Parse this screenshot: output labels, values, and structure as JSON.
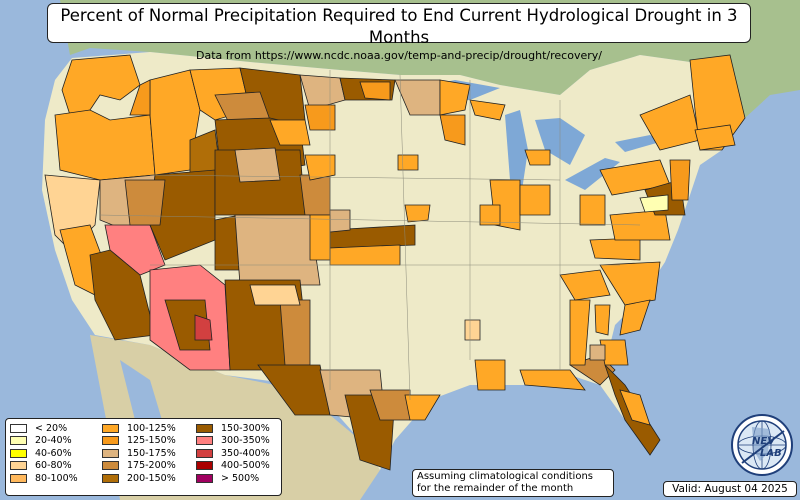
{
  "title": "Percent of Normal Precipitation Required to End Current Hydrological Drought in 3 Months",
  "subtitle": "Data from https://www.ncdc.noaa.gov/temp-and-precip/drought/recovery/",
  "legend": {
    "items": [
      {
        "label": "< 20%",
        "color": "#ffffff"
      },
      {
        "label": "20-40%",
        "color": "#ffffb2"
      },
      {
        "label": "40-60%",
        "color": "#ffff00"
      },
      {
        "label": "60-80%",
        "color": "#ffd494"
      },
      {
        "label": "80-100%",
        "color": "#ffb85c"
      },
      {
        "label": "100-125%",
        "color": "#ffa826"
      },
      {
        "label": "125-150%",
        "color": "#f79a1c"
      },
      {
        "label": "150-175%",
        "color": "#deb480"
      },
      {
        "label": "175-200%",
        "color": "#cd8b3c"
      },
      {
        "label": "200-150%",
        "color": "#b06e08"
      },
      {
        "label": "150-300%",
        "color": "#9a5b00"
      },
      {
        "label": "300-350%",
        "color": "#ff8080"
      },
      {
        "label": "350-400%",
        "color": "#d24040"
      },
      {
        "label": "400-500%",
        "color": "#aa0000"
      },
      {
        "label": "> 500%",
        "color": "#a00060"
      }
    ]
  },
  "note": {
    "line1": "Assuming climatological conditions",
    "line2": "for the remainder of the month"
  },
  "valid": "Valid: August 04 2025",
  "logo": {
    "icon": "nevlab-logo",
    "text_top": "NEV",
    "text_bottom": "LAB"
  },
  "colors": {
    "ocean": "#9ab8dc",
    "land": "#eeeac8",
    "mexico": "#d8cfa6",
    "canada": "#a7c08e",
    "lakes": "#7ea8d6"
  }
}
